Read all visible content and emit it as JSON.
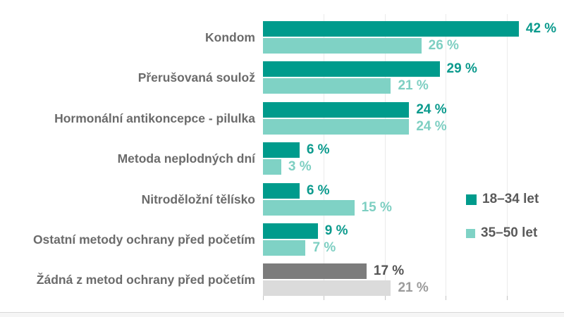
{
  "chart_data": {
    "type": "bar",
    "orientation": "horizontal",
    "title": "",
    "xlabel": "",
    "ylabel": "",
    "categories": [
      "Kondom",
      "Přerušovaná soulož",
      "Hormonální antikoncepce - pilulka",
      "Metoda neplodných dní",
      "Nitroděložní tělísko",
      "Ostatní metody ochrany před početím",
      "Žádná z metod ochrany před početím"
    ],
    "series": [
      {
        "name": "18–34 let",
        "values": [
          42,
          29,
          24,
          6,
          6,
          9,
          17
        ],
        "bar_color": "#009B8C",
        "label_color": "#0B9A8D"
      },
      {
        "name": "35–50 let",
        "values": [
          26,
          21,
          24,
          3,
          15,
          7,
          21
        ],
        "bar_color": "#7FD2C5",
        "label_color": "#7ECFC2"
      }
    ],
    "neutral_last_category": {
      "index": 6,
      "bar_colors": [
        "#7C7C7C",
        "#DBDBDB"
      ],
      "label_colors": [
        "#545454",
        "#9B9B9B"
      ]
    },
    "value_suffix": " %",
    "xlim": [
      0,
      50
    ],
    "gridline_step": 10,
    "grid": true,
    "legend_position": "right",
    "legend": [
      "18–34 let",
      "35–50 let"
    ]
  },
  "colors": {
    "category_label": "#6B6B6B",
    "legend_text": "#5A5A5A",
    "gridline": "#EBEBEB",
    "tick": "#C4C4C4",
    "background": "#FFFFFF",
    "bottom_strip": "#F5F5F5"
  }
}
